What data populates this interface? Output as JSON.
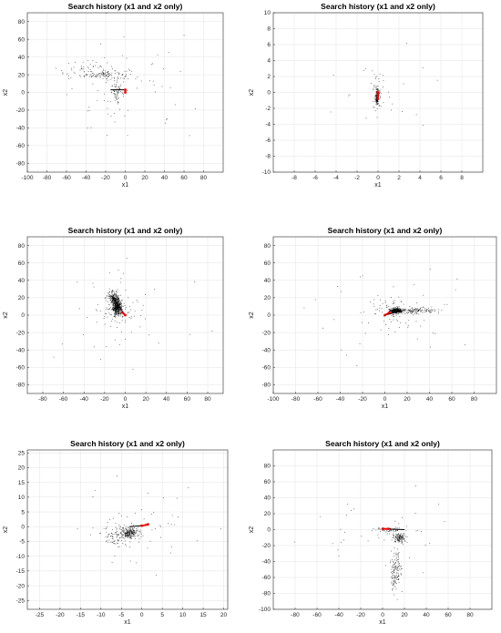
{
  "chart_data": [
    {
      "type": "scatter",
      "title": "Search history (x1 and x2 only)",
      "xlabel": "x1",
      "ylabel": "x2",
      "xlim": [
        -100,
        100
      ],
      "ylim": [
        -90,
        90
      ],
      "xticks": [
        -100,
        -80,
        -60,
        -40,
        -20,
        0,
        20,
        40,
        60,
        80
      ],
      "yticks": [
        -80,
        -60,
        -40,
        -20,
        0,
        20,
        40,
        60,
        80
      ],
      "grid": true,
      "colors": {
        "points": "#000000",
        "best_path": "#ff0000"
      },
      "clusters": [
        {
          "center": [
            -20,
            20
          ],
          "spread": [
            25,
            6
          ],
          "count": 110
        },
        {
          "center": [
            -40,
            25
          ],
          "spread": [
            30,
            10
          ],
          "count": 50
        },
        {
          "center": [
            -8,
            0
          ],
          "spread": [
            6,
            10
          ],
          "count": 60
        },
        {
          "center": [
            0,
            0
          ],
          "spread": [
            70,
            60
          ],
          "count": 60
        }
      ],
      "search_line": [
        [
          -15,
          3
        ],
        [
          0,
          3
        ]
      ],
      "best_path": [
        [
          0,
          0
        ],
        [
          0,
          3
        ]
      ]
    },
    {
      "type": "scatter",
      "title": "Search history (x1 and x2 only)",
      "xlabel": "x1",
      "ylabel": "x2",
      "xlim": [
        -10,
        10
      ],
      "ylim": [
        -10,
        10
      ],
      "xticks": [
        -8,
        -6,
        -4,
        -2,
        0,
        2,
        4,
        6,
        8
      ],
      "yticks": [
        -10,
        -8,
        -6,
        -4,
        -2,
        0,
        2,
        4,
        6,
        8,
        10
      ],
      "grid": true,
      "colors": {
        "points": "#000000",
        "best_path": "#ff0000"
      },
      "clusters": [
        {
          "center": [
            -0.1,
            -0.5
          ],
          "spread": [
            0.15,
            1.2
          ],
          "count": 120
        },
        {
          "center": [
            0,
            0
          ],
          "spread": [
            0.6,
            3
          ],
          "count": 40
        },
        {
          "center": [
            0,
            0
          ],
          "spread": [
            5,
            5
          ],
          "count": 20
        }
      ],
      "search_line": [
        [
          -0.1,
          -1.2
        ],
        [
          0.1,
          0
        ]
      ],
      "best_path": [
        [
          0,
          -0.8
        ],
        [
          0,
          0
        ]
      ]
    },
    {
      "type": "scatter",
      "title": "Search history (x1 and x2 only)",
      "xlabel": "x1",
      "ylabel": "x2",
      "xlim": [
        -95,
        95
      ],
      "ylim": [
        -90,
        90
      ],
      "xticks": [
        -80,
        -60,
        -40,
        -20,
        0,
        20,
        40,
        60,
        80
      ],
      "yticks": [
        -80,
        -60,
        -40,
        -20,
        0,
        20,
        40,
        60,
        80
      ],
      "grid": true,
      "colors": {
        "points": "#000000",
        "best_path": "#ff0000"
      },
      "clusters": [
        {
          "center": [
            -8,
            10
          ],
          "spread": [
            4,
            10
          ],
          "count": 450
        },
        {
          "center": [
            -12,
            20
          ],
          "spread": [
            5,
            8
          ],
          "count": 150
        },
        {
          "center": [
            -10,
            5
          ],
          "spread": [
            15,
            15
          ],
          "count": 80
        },
        {
          "center": [
            0,
            0
          ],
          "spread": [
            60,
            55
          ],
          "count": 50
        }
      ],
      "search_line": [
        [
          -12,
          20
        ],
        [
          0,
          0
        ]
      ],
      "best_path": [
        [
          -3,
          3
        ],
        [
          0,
          0
        ]
      ]
    },
    {
      "type": "scatter",
      "title": "Search history (x1 and x2 only)",
      "xlabel": "x1",
      "ylabel": "x2",
      "xlim": [
        -100,
        100
      ],
      "ylim": [
        -90,
        90
      ],
      "xticks": [
        -100,
        -80,
        -60,
        -40,
        -20,
        0,
        20,
        40,
        60,
        80
      ],
      "yticks": [
        -80,
        -60,
        -40,
        -20,
        0,
        20,
        40,
        60,
        80
      ],
      "grid": true,
      "colors": {
        "points": "#000000",
        "best_path": "#ff0000"
      },
      "clusters": [
        {
          "center": [
            10,
            5
          ],
          "spread": [
            6,
            3
          ],
          "count": 300
        },
        {
          "center": [
            30,
            5
          ],
          "spread": [
            18,
            4
          ],
          "count": 120
        },
        {
          "center": [
            5,
            5
          ],
          "spread": [
            20,
            15
          ],
          "count": 60
        },
        {
          "center": [
            0,
            0
          ],
          "spread": [
            65,
            55
          ],
          "count": 50
        }
      ],
      "search_line": [
        [
          0,
          0
        ],
        [
          15,
          5
        ]
      ],
      "best_path": [
        [
          0,
          0
        ],
        [
          4,
          3
        ]
      ]
    },
    {
      "type": "scatter",
      "title": "Search history (x1 and x2 only)",
      "xlabel": "x1",
      "ylabel": "x2",
      "xlim": [
        -28,
        21
      ],
      "ylim": [
        -28,
        26
      ],
      "xticks": [
        -25,
        -20,
        -15,
        -10,
        -5,
        0,
        5,
        10,
        15,
        20
      ],
      "yticks": [
        -25,
        -20,
        -15,
        -10,
        -5,
        0,
        5,
        10,
        15,
        20,
        25
      ],
      "grid": true,
      "colors": {
        "points": "#000000",
        "best_path": "#ff0000"
      },
      "clusters": [
        {
          "center": [
            -3,
            -2
          ],
          "spread": [
            2,
            2
          ],
          "count": 200
        },
        {
          "center": [
            -6,
            -3
          ],
          "spread": [
            5,
            4
          ],
          "count": 100
        },
        {
          "center": [
            0,
            0
          ],
          "spread": [
            14,
            14
          ],
          "count": 50
        }
      ],
      "search_line": [
        [
          -3,
          0
        ],
        [
          1.5,
          0.5
        ]
      ],
      "best_path": [
        [
          0,
          0.3
        ],
        [
          1.5,
          0.8
        ]
      ]
    },
    {
      "type": "scatter",
      "title": "Search history (x1 and x2 only)",
      "xlabel": "x1",
      "ylabel": "x2",
      "xlim": [
        -100,
        100
      ],
      "ylim": [
        -100,
        100
      ],
      "xticks": [
        -80,
        -60,
        -40,
        -20,
        0,
        20,
        40,
        60,
        80
      ],
      "yticks": [
        -100,
        -80,
        -60,
        -40,
        -20,
        0,
        20,
        40,
        60,
        80
      ],
      "grid": true,
      "colors": {
        "points": "#000000",
        "best_path": "#ff0000"
      },
      "clusters": [
        {
          "center": [
            15,
            -10
          ],
          "spread": [
            6,
            6
          ],
          "count": 120
        },
        {
          "center": [
            12,
            -50
          ],
          "spread": [
            5,
            25
          ],
          "count": 140
        },
        {
          "center": [
            5,
            0
          ],
          "spread": [
            12,
            3
          ],
          "count": 60
        },
        {
          "center": [
            0,
            0
          ],
          "spread": [
            60,
            60
          ],
          "count": 40
        }
      ],
      "search_line": [
        [
          0,
          1
        ],
        [
          20,
          0
        ]
      ],
      "best_path": [
        [
          0,
          1
        ],
        [
          5,
          1
        ]
      ]
    }
  ]
}
